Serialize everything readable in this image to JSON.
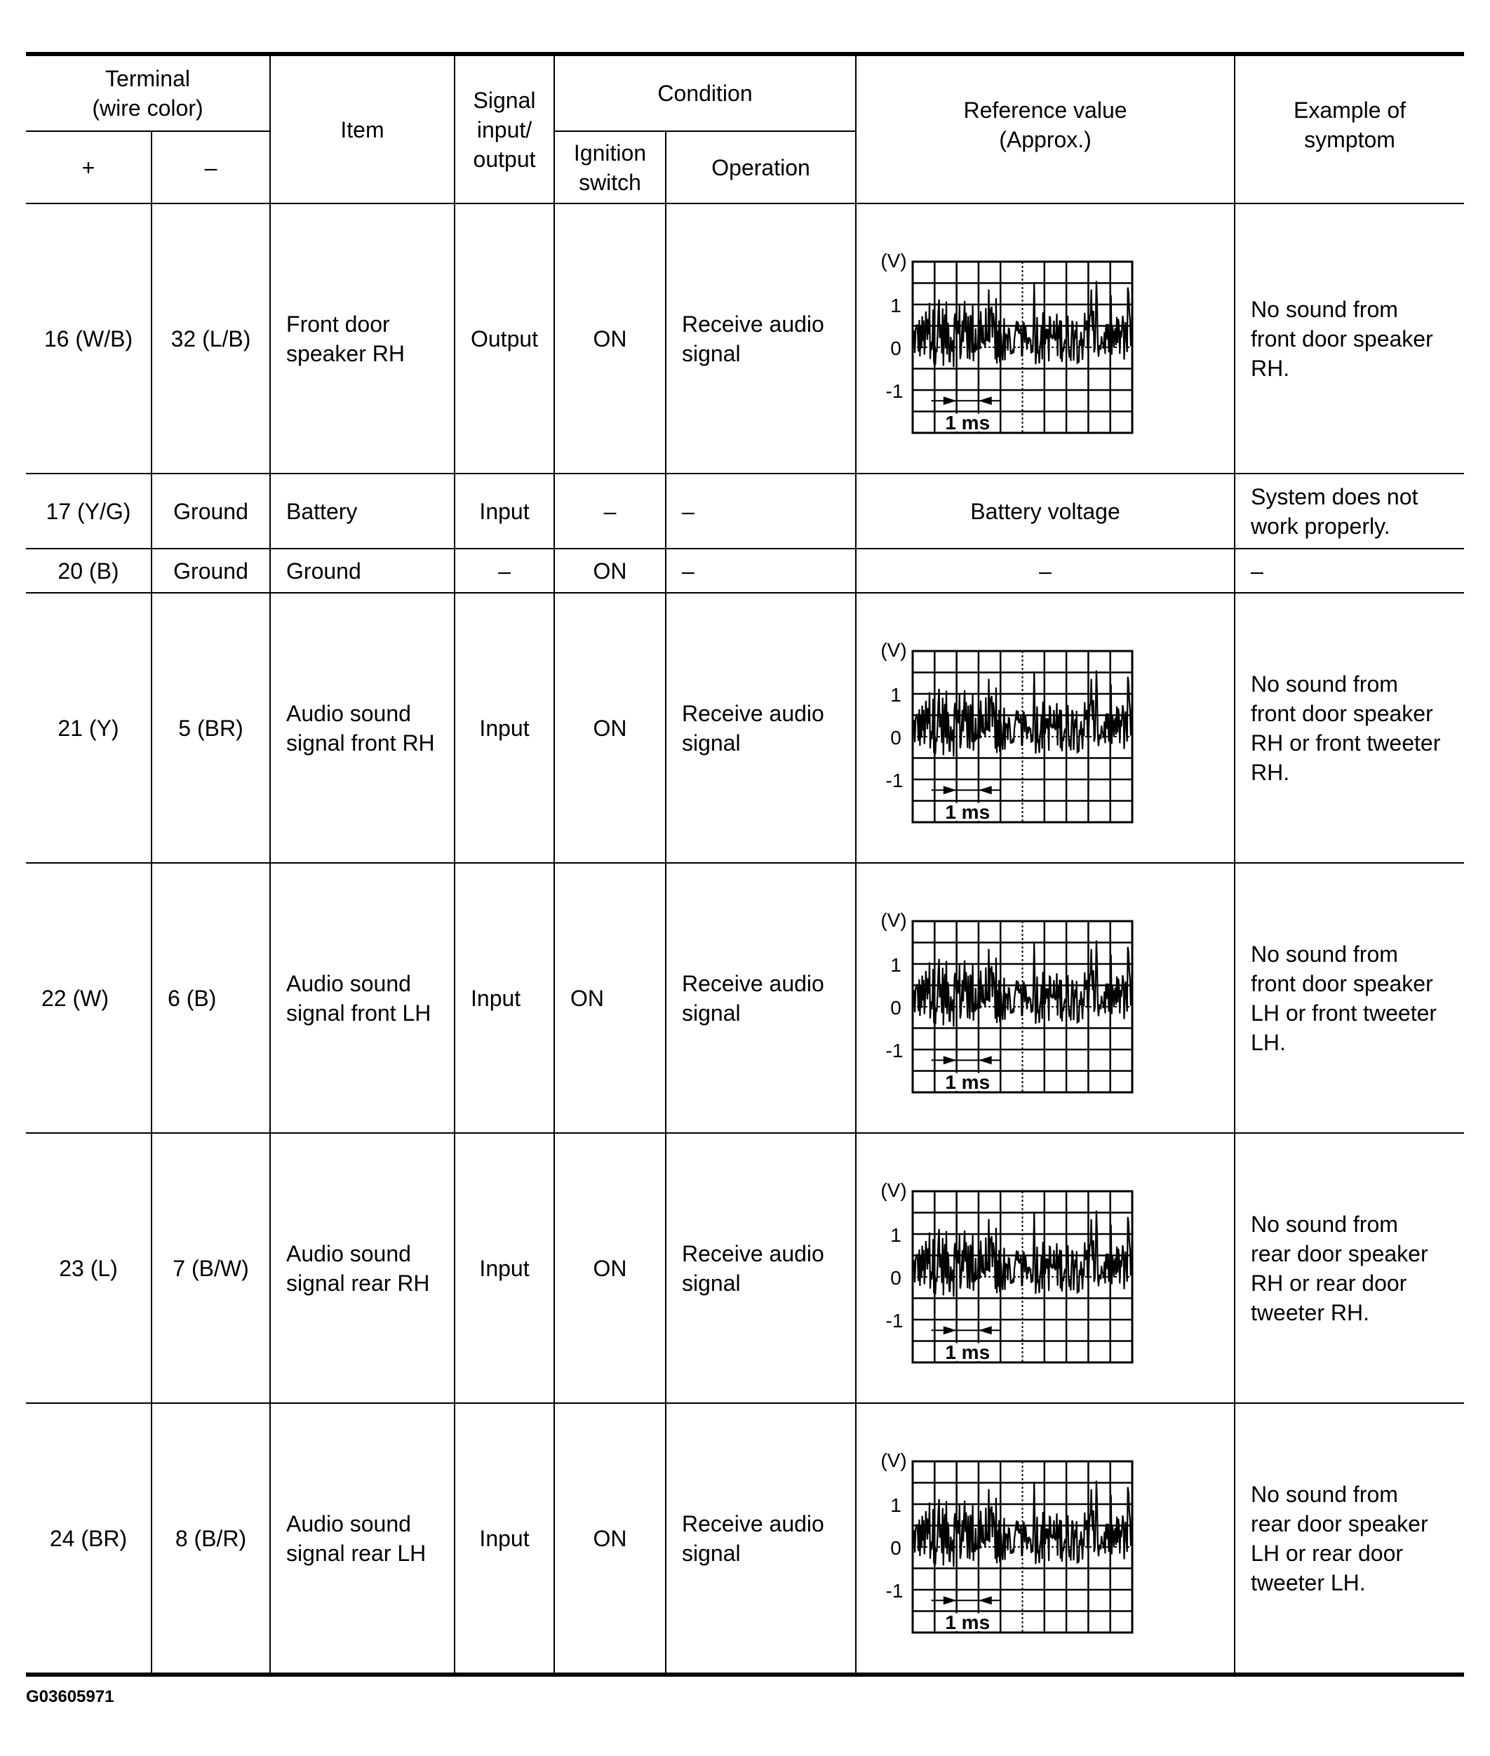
{
  "header": {
    "terminal": "Terminal\n(wire color)",
    "plus": "+",
    "minus": "–",
    "item": "Item",
    "signal": "Signal\ninput/\noutput",
    "condition": "Condition",
    "ignition": "Ignition\nswitch",
    "operation": "Operation",
    "reference": "Reference value\n(Approx.)",
    "symptom": "Example of\nsymptom"
  },
  "waveform_labels": {
    "unit": "(V)",
    "y_ticks": [
      "1",
      "0",
      "-1"
    ],
    "time_scale": "1 ms"
  },
  "rows": [
    {
      "plus": "16 (W/B)",
      "minus": "32 (L/B)",
      "item": "Front door\nspeaker RH",
      "signal": "Output",
      "ignition": "ON",
      "operation": "Receive audio\nsignal",
      "reference": "waveform",
      "symptom": "No sound from\nfront door speaker\nRH."
    },
    {
      "plus": "17 (Y/G)",
      "minus": "Ground",
      "item": "Battery",
      "signal": "Input",
      "ignition": "–",
      "operation": "–",
      "reference": "Battery voltage",
      "symptom": "System does not\nwork properly."
    },
    {
      "plus": "20 (B)",
      "minus": "Ground",
      "item": "Ground",
      "signal": "–",
      "ignition": "ON",
      "operation": "–",
      "reference": "–",
      "symptom": "–"
    },
    {
      "plus": "21 (Y)",
      "minus": "5 (BR)",
      "item": "Audio sound\nsignal front RH",
      "signal": "Input",
      "ignition": "ON",
      "operation": "Receive audio\nsignal",
      "reference": "waveform",
      "symptom": "No sound from\nfront door speaker\nRH or front tweeter\nRH."
    },
    {
      "plus": "22 (W)",
      "minus": "6 (B)",
      "item": "Audio sound\nsignal front LH",
      "signal": "Input",
      "ignition": "ON",
      "operation": "Receive audio\nsignal",
      "reference": "waveform",
      "symptom": "No sound from\nfront door speaker\nLH or front tweeter\nLH.",
      "left_aligned_first_cols": true
    },
    {
      "plus": "23 (L)",
      "minus": "7 (B/W)",
      "item": "Audio sound\nsignal rear RH",
      "signal": "Input",
      "ignition": "ON",
      "operation": "Receive audio\nsignal",
      "reference": "waveform",
      "symptom": "No sound from\nrear door speaker\nRH or rear door\ntweeter RH."
    },
    {
      "plus": "24 (BR)",
      "minus": "8 (B/R)",
      "item": "Audio sound\nsignal rear LH",
      "signal": "Input",
      "ignition": "ON",
      "operation": "Receive audio\nsignal",
      "reference": "waveform",
      "symptom": "No sound from\nrear door speaker\nLH or rear door\ntweeter LH."
    }
  ],
  "footer": {
    "figure_id": "G03605971"
  }
}
